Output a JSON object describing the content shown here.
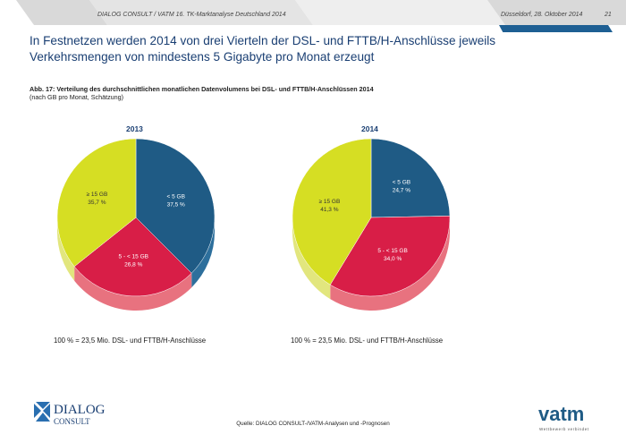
{
  "header": {
    "left": "DIALOG CONSULT / VATM 16. TK-Marktanalyse Deutschland 2014",
    "date": "Düsseldorf, 28. Oktober 2014",
    "page": "21"
  },
  "title": "In Festnetzen werden 2014 von drei Vierteln der DSL- und FTTB/H-Anschlüsse jeweils Verkehrsmengen von mindestens 5 Gigabyte pro Monat erzeugt",
  "caption": {
    "main": "Abb. 17: Verteilung des durchschnittlichen monatlichen Datenvolumens bei DSL- und FTTB/H-Anschlüssen 2014",
    "sub": "(nach GB pro Monat, Schätzung)"
  },
  "colors": {
    "lt5": "#1f5b85",
    "mid": "#d81e47",
    "ge15": "#d6de23",
    "title": "#1a3f73"
  },
  "chart_data": [
    {
      "type": "pie",
      "title": "2013",
      "slices": [
        {
          "label": "< 5 GB",
          "value": 37.5,
          "value_text": "37,5 %"
        },
        {
          "label": "5 - < 15 GB",
          "value": 26.8,
          "value_text": "26,8 %"
        },
        {
          "label": "≥ 15 GB",
          "value": 35.7,
          "value_text": "35,7 %"
        }
      ],
      "footnote": "100 % = 23,5 Mio. DSL- und FTTB/H-Anschlüsse"
    },
    {
      "type": "pie",
      "title": "2014",
      "slices": [
        {
          "label": "< 5 GB",
          "value": 24.7,
          "value_text": "24,7 %"
        },
        {
          "label": "5 - < 15 GB",
          "value": 34.0,
          "value_text": "34,0 %"
        },
        {
          "label": "≥ 15 GB",
          "value": 41.3,
          "value_text": "41,3 %"
        }
      ],
      "footnote": "100 % = 23,5 Mio. DSL- und FTTB/H-Anschlüsse"
    }
  ],
  "source": "Quelle: DIALOG CONSULT-/VATM-Analysen und -Prognosen",
  "logos": {
    "dialog_line1": "DIALOG",
    "dialog_line2": "CONSULT",
    "vatm": "vatm",
    "vatm_tagline": "Wettbewerb verbindet"
  }
}
